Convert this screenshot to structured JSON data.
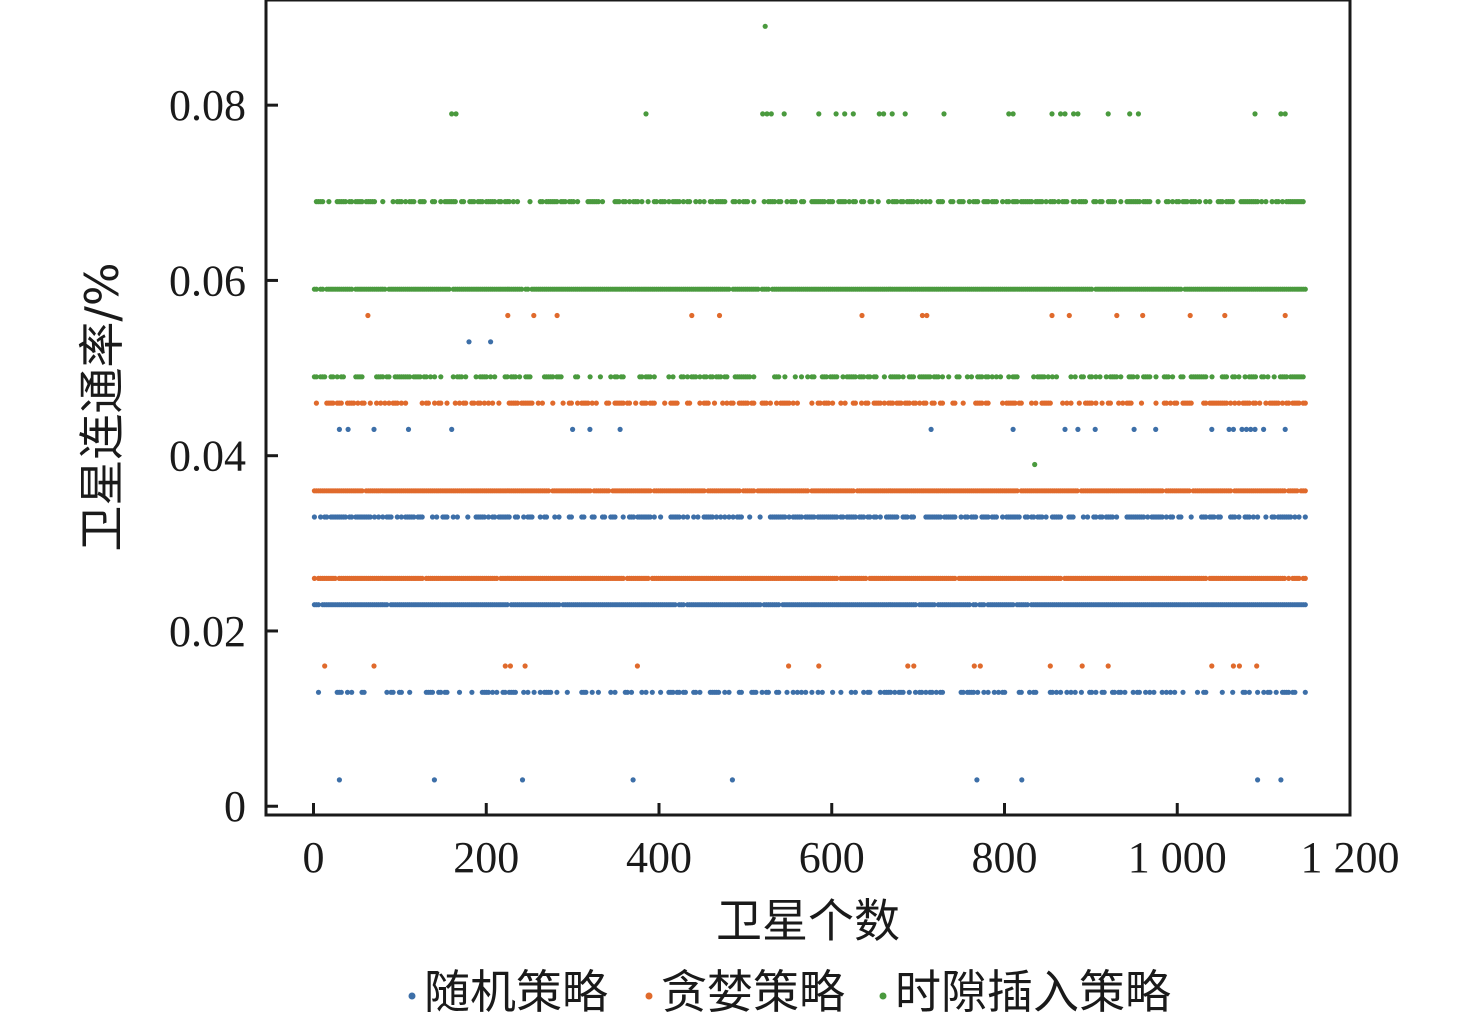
{
  "chart_data": {
    "type": "scatter",
    "title": "",
    "xlabel": "卫星个数",
    "ylabel": "卫星连通率/%",
    "xlim": [
      -55,
      1200
    ],
    "ylim": [
      -0.001,
      0.092
    ],
    "xticks": [
      0,
      200,
      400,
      600,
      800,
      1000,
      1200
    ],
    "xtick_labels": [
      "0",
      "200",
      "400",
      "600",
      "800",
      "1 000",
      "1 200"
    ],
    "yticks": [
      0,
      0.02,
      0.04,
      0.06,
      0.08
    ],
    "ytick_labels": [
      "0",
      "0.02",
      "0.04",
      "0.06",
      "0.08"
    ],
    "grid": false,
    "legend_position": "bottom",
    "series": [
      {
        "name": "随机策略",
        "color": "#3d6fa8",
        "bands": [
          {
            "y": 0.023,
            "density": 0.97
          },
          {
            "y": 0.033,
            "density": 0.6
          },
          {
            "y": 0.013,
            "density": 0.4
          },
          {
            "y": 0.043,
            "x": [
              30,
              40,
              70,
              110,
              160,
              300,
              320,
              355,
              715,
              810,
              870,
              885,
              905,
              950,
              975,
              1040,
              1060,
              1065,
              1075,
              1080,
              1085,
              1090,
              1100,
              1125
            ]
          },
          {
            "y": 0.053,
            "x": [
              180,
              205
            ]
          },
          {
            "y": 0.003,
            "x": [
              30,
              140,
              242,
              370,
              485,
              768,
              820,
              1093,
              1120
            ]
          }
        ]
      },
      {
        "name": "贪婪策略",
        "color": "#e06a2c",
        "bands": [
          {
            "y": 0.026,
            "density": 0.97
          },
          {
            "y": 0.036,
            "density": 0.97
          },
          {
            "y": 0.046,
            "density": 0.55
          },
          {
            "y": 0.056,
            "x": [
              63,
              225,
              255,
              282,
              438,
              470,
              635,
              705,
              710,
              855,
              875,
              930,
              960,
              1015,
              1055,
              1125
            ]
          },
          {
            "y": 0.016,
            "x": [
              13,
              70,
              222,
              228,
              245,
              375,
              550,
              585,
              688,
              695,
              765,
              772,
              853,
              890,
              920,
              1040,
              1065,
              1072,
              1092
            ]
          }
        ]
      },
      {
        "name": "时隙插入策略",
        "color": "#4a9a3e",
        "bands": [
          {
            "y": 0.059,
            "density": 0.97
          },
          {
            "y": 0.069,
            "density": 0.6
          },
          {
            "y": 0.049,
            "density": 0.5
          },
          {
            "y": 0.079,
            "x": [
              160,
              165,
              385,
              520,
              525,
              530,
              545,
              585,
              605,
              615,
              625,
              655,
              660,
              670,
              685,
              730,
              805,
              810,
              855,
              865,
              870,
              880,
              885,
              920,
              945,
              955,
              1090,
              1120,
              1125
            ]
          },
          {
            "y": 0.089,
            "x": [
              523
            ]
          },
          {
            "y": 0.039,
            "x": [
              835
            ]
          }
        ]
      }
    ]
  }
}
